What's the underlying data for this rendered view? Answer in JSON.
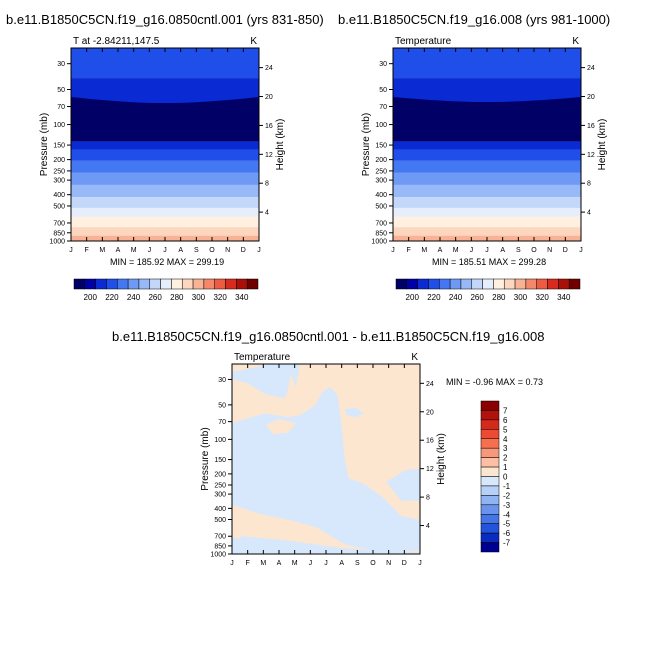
{
  "chart_data": [
    {
      "type": "heatmap",
      "title": "b.e11.B1850C5CN.f19_g16.0850cntl.001 (yrs 831-850)",
      "subtitle": "T at -2.84211,147.5",
      "units": "K",
      "ylabel": "Pressure (mb)",
      "ylabel_right": "Height (km)",
      "x_ticks": [
        "J",
        "F",
        "M",
        "A",
        "M",
        "J",
        "J",
        "A",
        "S",
        "O",
        "N",
        "D",
        "J"
      ],
      "y_ticks": [
        "30",
        "50",
        "70",
        "100",
        "150",
        "200",
        "250",
        "300",
        "400",
        "500",
        "700",
        "850",
        "1000"
      ],
      "y_ticks_right": [
        "24",
        "20",
        "16",
        "12",
        "8",
        "4"
      ],
      "min_max_text": "MIN = 185.92  MAX = 299.19",
      "min": 185.92,
      "max": 299.19
    },
    {
      "type": "heatmap",
      "title": "b.e11.B1850C5CN.f19_g16.008 (yrs 981-1000)",
      "subtitle": "Temperature",
      "units": "K",
      "ylabel": "Pressure (mb)",
      "ylabel_right": "Height (km)",
      "x_ticks": [
        "J",
        "F",
        "M",
        "A",
        "M",
        "J",
        "J",
        "A",
        "S",
        "O",
        "N",
        "D",
        "J"
      ],
      "y_ticks": [
        "30",
        "50",
        "70",
        "100",
        "150",
        "200",
        "250",
        "300",
        "400",
        "500",
        "700",
        "850",
        "1000"
      ],
      "y_ticks_right": [
        "24",
        "20",
        "16",
        "12",
        "8",
        "4"
      ],
      "min_max_text": "MIN = 185.51  MAX = 299.28",
      "min": 185.51,
      "max": 299.28
    },
    {
      "type": "heatmap",
      "title": "b.e11.B1850C5CN.f19_g16.0850cntl.001 - b.e11.B1850C5CN.f19_g16.008",
      "subtitle": "Temperature",
      "units": "K",
      "ylabel": "Pressure (mb)",
      "ylabel_right": "Height (km)",
      "x_ticks": [
        "J",
        "F",
        "M",
        "A",
        "M",
        "J",
        "J",
        "A",
        "S",
        "O",
        "N",
        "D",
        "J"
      ],
      "y_ticks": [
        "30",
        "50",
        "70",
        "100",
        "150",
        "200",
        "250",
        "300",
        "400",
        "500",
        "700",
        "850",
        "1000"
      ],
      "y_ticks_right": [
        "24",
        "20",
        "16",
        "12",
        "8",
        "4"
      ],
      "min_max_text": "MIN =  -0.96  MAX =   0.73",
      "min": -0.96,
      "max": 0.73
    }
  ],
  "colorbar_abs": {
    "labels": [
      "200",
      "220",
      "240",
      "260",
      "280",
      "300",
      "320",
      "340"
    ],
    "colors": [
      "#000066",
      "#0000a8",
      "#0a2bd3",
      "#1f4fe8",
      "#4478f3",
      "#6e9af5",
      "#97b9f7",
      "#c3d7f9",
      "#e6eefb",
      "#fff0e0",
      "#fdd6bf",
      "#f9b394",
      "#f5876a",
      "#ee5a42",
      "#d92a1e",
      "#aa1008",
      "#700000"
    ]
  },
  "colorbar_diff": {
    "labels": [
      "7",
      "6",
      "5",
      "4",
      "3",
      "2",
      "1",
      "0",
      "-1",
      "-2",
      "-3",
      "-4",
      "-5",
      "-6",
      "-7"
    ],
    "colors": [
      "#8b0000",
      "#b3120c",
      "#d42a1c",
      "#ec4a32",
      "#f5704f",
      "#f9977a",
      "#fcbfa3",
      "#fde6d0",
      "#d7e8fc",
      "#b7d0f7",
      "#90b4f2",
      "#6a93ec",
      "#4574e6",
      "#2352dc",
      "#0a2bc0",
      "#000090"
    ]
  }
}
